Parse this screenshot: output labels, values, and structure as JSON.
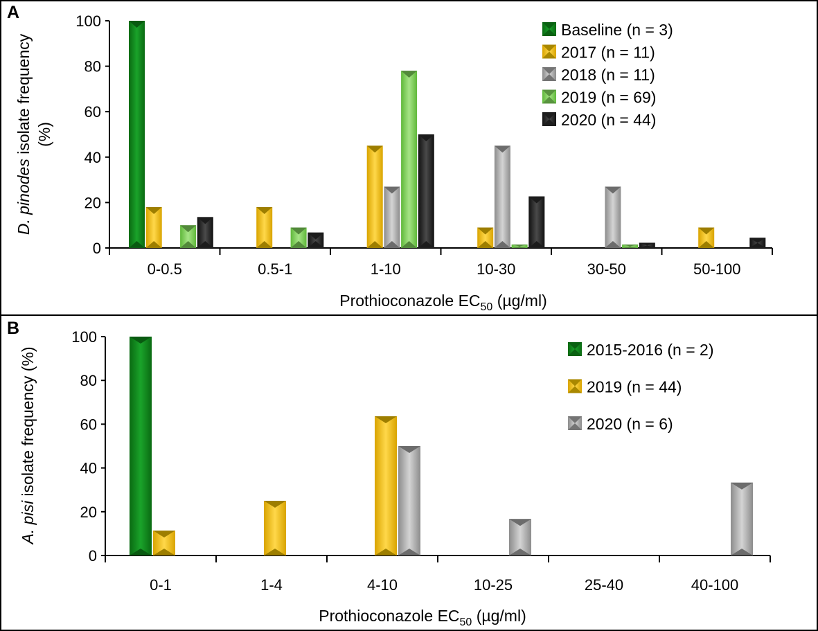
{
  "colors": {
    "green": "#0e8a1a",
    "gold": "#f2c200",
    "gray": "#a6a6a6",
    "lightgreen": "#7fd35a",
    "black": "#2b2b2b"
  },
  "chart_data": [
    {
      "type": "bar",
      "panel_label": "A",
      "title": "",
      "categories": [
        "0-0.5",
        "0.5-1",
        "1-10",
        "10-30",
        "30-50",
        "50-100"
      ],
      "series": [
        {
          "name": "Baseline (n = 3)",
          "color": "green",
          "values": [
            100,
            0,
            0,
            0,
            0,
            0
          ]
        },
        {
          "name": "2017 (n = 11)",
          "color": "gold",
          "values": [
            18,
            18,
            45,
            9,
            0,
            9
          ]
        },
        {
          "name": "2018 (n = 11)",
          "color": "gray",
          "values": [
            0,
            0,
            27,
            45,
            27,
            0
          ]
        },
        {
          "name": "2019 (n = 69)",
          "color": "lightgreen",
          "values": [
            10,
            9,
            78,
            1.5,
            1.5,
            0
          ]
        },
        {
          "name": "2020 (n = 44)",
          "color": "black",
          "values": [
            13.6,
            6.8,
            50,
            22.7,
            2.3,
            4.5
          ]
        }
      ],
      "ylabel_italic": "D. pinodes",
      "ylabel_rest": " isolate frequency",
      "ylabel_line2": "(%)",
      "xlabel": {
        "pre": "Prothioconazole EC",
        "sub": "50",
        "post": " (µg/ml)"
      },
      "ylim": [
        0,
        100
      ],
      "yticks": [
        0,
        20,
        40,
        60,
        80,
        100
      ],
      "legend_position": "top-right"
    },
    {
      "type": "bar",
      "panel_label": "B",
      "title": "",
      "categories": [
        "0-1",
        "1-4",
        "4-10",
        "10-25",
        "25-40",
        "40-100"
      ],
      "series": [
        {
          "name": "2015-2016 (n = 2)",
          "color": "green",
          "values": [
            100,
            0,
            0,
            0,
            0,
            0
          ]
        },
        {
          "name": "2019 (n = 44)",
          "color": "gold",
          "values": [
            11.4,
            25,
            63.6,
            0,
            0,
            0
          ]
        },
        {
          "name": "2020 (n = 6)",
          "color": "gray",
          "values": [
            0,
            0,
            50,
            16.7,
            0,
            33.3
          ]
        }
      ],
      "ylabel_italic": "A. pisi",
      "ylabel_rest": " isolate frequency (%)",
      "xlabel": {
        "pre": "Prothioconazole EC",
        "sub": "50",
        "post": " (µg/ml)"
      },
      "ylim": [
        0,
        100
      ],
      "yticks": [
        0,
        20,
        40,
        60,
        80,
        100
      ],
      "legend_position": "top-right"
    }
  ]
}
